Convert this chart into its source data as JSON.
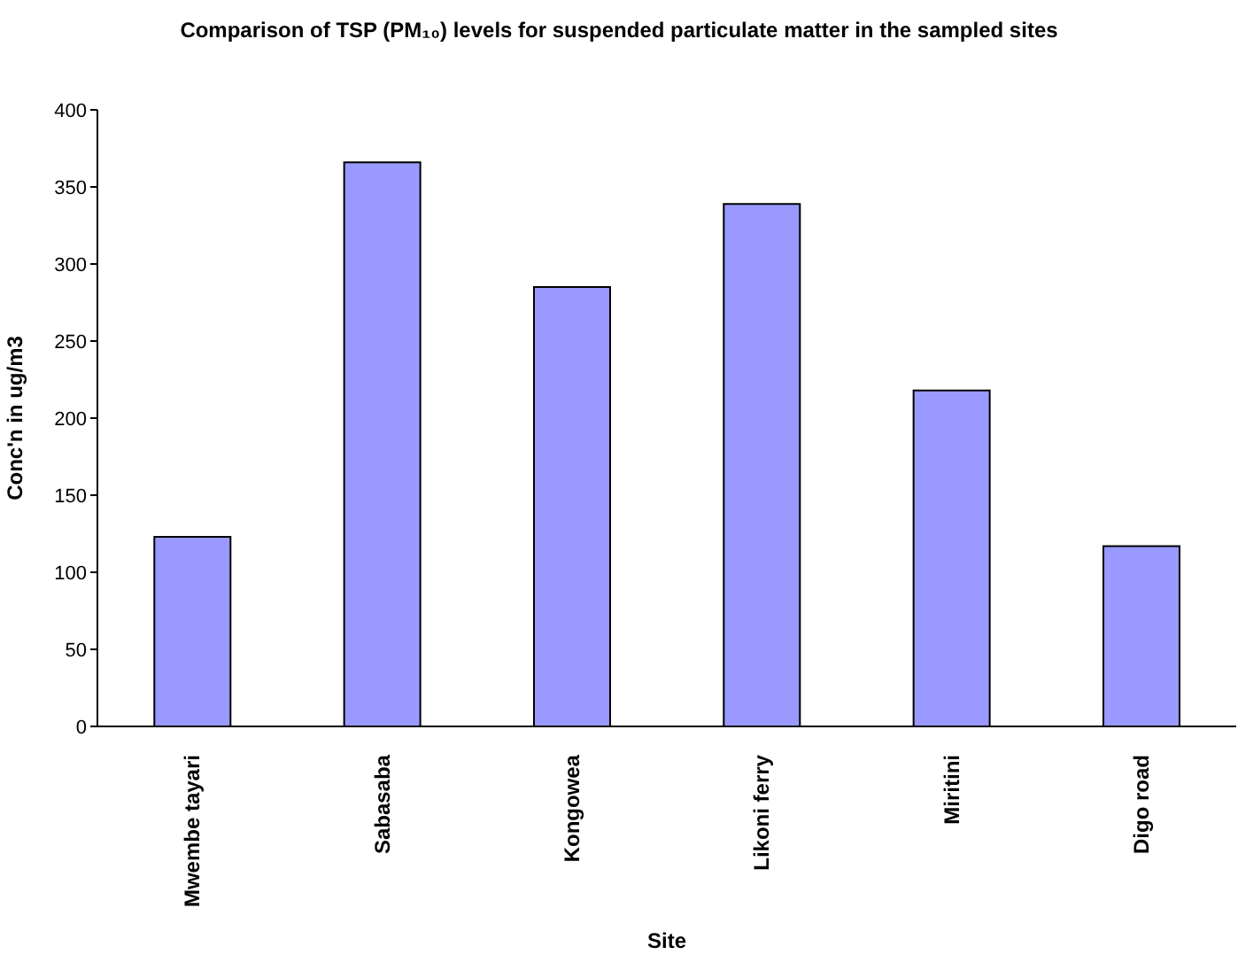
{
  "chart_data": {
    "type": "bar",
    "title": "Comparison of TSP (PM₁₀) levels for suspended particulate matter in the sampled sites",
    "xlabel": "Site",
    "ylabel": "Conc'n in ug/m3",
    "categories": [
      "Mwembe tayari",
      "Sabasaba",
      "Kongowea",
      "Likoni ferry",
      "Miritini",
      "Digo road"
    ],
    "values": [
      123,
      366,
      285,
      339,
      218,
      117
    ],
    "color": "#9999ff",
    "ylim": [
      0,
      400
    ],
    "yticks": [
      0,
      50,
      100,
      150,
      200,
      250,
      300,
      350,
      400
    ]
  }
}
